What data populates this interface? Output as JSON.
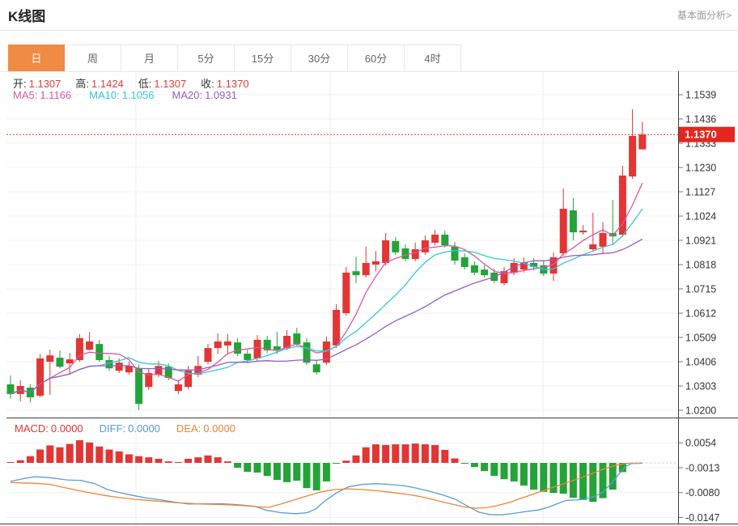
{
  "page": {
    "title": "K线图",
    "link_text": "基本面分析>"
  },
  "tabs": [
    {
      "label": "日",
      "active": true
    },
    {
      "label": "周",
      "active": false
    },
    {
      "label": "月",
      "active": false
    },
    {
      "label": "5分",
      "active": false
    },
    {
      "label": "15分",
      "active": false
    },
    {
      "label": "30分",
      "active": false
    },
    {
      "label": "60分",
      "active": false
    },
    {
      "label": "4时",
      "active": false
    }
  ],
  "ohlc_legend": [
    {
      "label": "开:",
      "value": "1.1307"
    },
    {
      "label": "高:",
      "value": "1.1424"
    },
    {
      "label": "低:",
      "value": "1.1307"
    },
    {
      "label": "收:",
      "value": "1.1370"
    }
  ],
  "ma_legend": [
    {
      "label": "MA5:",
      "value": "1.1166",
      "color": "#e0569e"
    },
    {
      "label": "MA10:",
      "value": "1.1056",
      "color": "#36c6d9"
    },
    {
      "label": "MA20:",
      "value": "1.0931",
      "color": "#9a5bc5"
    }
  ],
  "macd_legend": [
    {
      "label": "MACD:",
      "value": "0.0000",
      "color": "#e23534"
    },
    {
      "label": "DIFF:",
      "value": "0.0000",
      "color": "#5b9bd5"
    },
    {
      "label": "DEA:",
      "value": "0.0000",
      "color": "#ed8537"
    }
  ],
  "current_price": "1.1370",
  "colors": {
    "up": "#e23534",
    "down": "#23a338",
    "ma5": "#e0569e",
    "ma10": "#36c6d9",
    "ma20": "#9a5bc5",
    "diff": "#5b9bd5",
    "dea": "#ed8537",
    "tab_active": "#ef8b43",
    "price_badge": "#e5261f",
    "value_text": "#e23b3b",
    "axis_text": "#333333",
    "grid": "#f0f0f0",
    "border_dark": "#3c3c3c",
    "dotted_flat": "#b9cdd8"
  },
  "chart_data": {
    "type": "candlestick",
    "main": {
      "y_axis_labels": [
        "1.1539",
        "1.1436",
        "1.1333",
        "1.1230",
        "1.1127",
        "1.1024",
        "1.0921",
        "1.0818",
        "1.0715",
        "1.0612",
        "1.0509",
        "1.0406",
        "1.0303",
        "1.0200"
      ],
      "current_price_value": 1.137,
      "ma_periods": [
        5,
        10,
        20
      ],
      "candles": [
        [
          1.031,
          1.0269,
          1.0347,
          1.0248
        ],
        [
          1.0269,
          1.0303,
          1.0327,
          1.0238
        ],
        [
          1.0296,
          1.0255,
          1.031,
          1.0234
        ],
        [
          1.0262,
          1.042,
          1.044,
          1.0255
        ],
        [
          1.0406,
          1.0433,
          1.0457,
          1.0265
        ],
        [
          1.0423,
          1.0385,
          1.0454,
          1.0378
        ],
        [
          1.0399,
          1.0416,
          1.0443,
          1.0351
        ],
        [
          1.0413,
          1.0506,
          1.0523,
          1.0406
        ],
        [
          1.0457,
          1.0492,
          1.0533,
          1.0454
        ],
        [
          1.0481,
          1.0413,
          1.0499,
          1.0406
        ],
        [
          1.0413,
          1.0378,
          1.043,
          1.0368
        ],
        [
          1.0368,
          1.0402,
          1.042,
          1.0358
        ],
        [
          1.0361,
          1.0388,
          1.0406,
          1.0351
        ],
        [
          1.0378,
          1.0227,
          1.0395,
          1.02
        ],
        [
          1.0299,
          1.0358,
          1.0375,
          1.0286
        ],
        [
          1.0351,
          1.0388,
          1.0409,
          1.0341
        ],
        [
          1.0385,
          1.0337,
          1.0399,
          1.0327
        ],
        [
          1.0282,
          1.031,
          1.0327,
          1.0269
        ],
        [
          1.0299,
          1.0368,
          1.0388,
          1.0289
        ],
        [
          1.0351,
          1.0388,
          1.043,
          1.0341
        ],
        [
          1.0406,
          1.0464,
          1.0481,
          1.0395
        ],
        [
          1.0464,
          1.0492,
          1.0526,
          1.044
        ],
        [
          1.0475,
          1.0492,
          1.0523,
          1.0437
        ],
        [
          1.0488,
          1.044,
          1.0506,
          1.043
        ],
        [
          1.044,
          1.0413,
          1.0457,
          1.0402
        ],
        [
          1.042,
          1.0499,
          1.0519,
          1.0409
        ],
        [
          1.0499,
          1.0454,
          1.0516,
          1.0443
        ],
        [
          1.0471,
          1.0457,
          1.0533,
          1.044
        ],
        [
          1.0464,
          1.0516,
          1.054,
          1.0454
        ],
        [
          1.0526,
          1.0481,
          1.055,
          1.0471
        ],
        [
          1.0488,
          1.0402,
          1.0506,
          1.0392
        ],
        [
          1.0395,
          1.0361,
          1.0413,
          1.0351
        ],
        [
          1.0402,
          1.0492,
          1.0512,
          1.0392
        ],
        [
          1.0475,
          1.0626,
          1.065,
          1.0464
        ],
        [
          1.0612,
          1.0784,
          1.0808,
          1.0602
        ],
        [
          1.079,
          1.0773,
          1.0852,
          1.0739
        ],
        [
          1.0773,
          1.0825,
          1.0894,
          1.0763
        ],
        [
          1.0818,
          1.0832,
          1.0876,
          1.079
        ],
        [
          1.0825,
          1.0921,
          1.0952,
          1.0815
        ],
        [
          1.0918,
          1.087,
          1.0935,
          1.0859
        ],
        [
          1.0887,
          1.0842,
          1.0904,
          1.0832
        ],
        [
          1.0842,
          1.0883,
          1.0911,
          1.0832
        ],
        [
          1.087,
          1.0921,
          1.0942,
          1.0859
        ],
        [
          1.0911,
          1.0945,
          1.0966,
          1.09
        ],
        [
          1.0945,
          1.09,
          1.0962,
          1.089
        ],
        [
          1.0894,
          1.0835,
          1.0914,
          1.0818
        ],
        [
          1.0849,
          1.0808,
          1.0866,
          1.0797
        ],
        [
          1.0815,
          1.0784,
          1.0832,
          1.0773
        ],
        [
          1.0797,
          1.0773,
          1.0815,
          1.0763
        ],
        [
          1.0784,
          1.0749,
          1.0801,
          1.0739
        ],
        [
          1.0739,
          1.079,
          1.0808,
          1.0729
        ],
        [
          1.0784,
          1.0825,
          1.0846,
          1.0773
        ],
        [
          1.0797,
          1.0828,
          1.0849,
          1.0784
        ],
        [
          1.0825,
          1.0808,
          1.0846,
          1.0794
        ],
        [
          1.0815,
          1.078,
          1.0832,
          1.077
        ],
        [
          1.078,
          1.0849,
          1.087,
          1.0749
        ],
        [
          1.0866,
          1.1055,
          1.1141,
          1.0856
        ],
        [
          1.1048,
          1.0955,
          1.11,
          1.0921
        ],
        [
          1.0955,
          1.0962,
          1.0986,
          1.0945
        ],
        [
          1.0883,
          1.0904,
          1.1038,
          1.0873
        ],
        [
          1.0894,
          1.0952,
          1.0997,
          1.0866
        ],
        [
          1.0952,
          1.0938,
          1.1093,
          1.0904
        ],
        [
          1.0945,
          1.1196,
          1.1237,
          1.0935
        ],
        [
          1.1192,
          1.1364,
          1.1477,
          1.1182
        ],
        [
          1.1307,
          1.137,
          1.1424,
          1.1307
        ]
      ]
    },
    "macd": {
      "y_axis_labels": [
        "0.0054",
        "-0.0013",
        "-0.0080",
        "-0.0147"
      ],
      "histogram": [
        0.0001,
        0.0007,
        0.0018,
        0.0036,
        0.0047,
        0.0042,
        0.0051,
        0.0061,
        0.0055,
        0.0044,
        0.0036,
        0.0031,
        0.0023,
        0.0018,
        0.0015,
        0.0011,
        0.0004,
        0.0001,
        0.0011,
        0.0015,
        0.002,
        0.0015,
        0.0004,
        -0.0013,
        -0.0024,
        -0.0026,
        -0.0035,
        -0.0046,
        -0.0052,
        -0.0048,
        -0.0068,
        -0.0074,
        -0.005,
        -0.0002,
        0.0006,
        0.002,
        0.0042,
        0.005,
        0.0048,
        0.005,
        0.005,
        0.0052,
        0.005,
        0.0048,
        0.0035,
        0.0012,
        -0.0002,
        -0.0011,
        -0.0022,
        -0.0035,
        -0.0044,
        -0.005,
        -0.0061,
        -0.0072,
        -0.0078,
        -0.0081,
        -0.0083,
        -0.0094,
        -0.01,
        -0.0105,
        -0.0095,
        -0.0072,
        -0.0025,
        0,
        0
      ],
      "diff_line": [
        [
          13,
          -0.005
        ],
        [
          30,
          -0.0042
        ],
        [
          43,
          -0.0037
        ],
        [
          62,
          -0.004
        ],
        [
          83,
          -0.0046
        ],
        [
          100,
          -0.0047
        ],
        [
          117,
          -0.0056
        ],
        [
          133,
          -0.0072
        ],
        [
          150,
          -0.0081
        ],
        [
          167,
          -0.0089
        ],
        [
          183,
          -0.0095
        ],
        [
          200,
          -0.01
        ],
        [
          217,
          -0.0106
        ],
        [
          233,
          -0.0111
        ],
        [
          255,
          -0.011
        ],
        [
          275,
          -0.011
        ],
        [
          295,
          -0.0113
        ],
        [
          315,
          -0.0117
        ],
        [
          330,
          -0.0128
        ],
        [
          347,
          -0.0134
        ],
        [
          365,
          -0.0137
        ],
        [
          380,
          -0.0134
        ],
        [
          390,
          -0.0124
        ],
        [
          400,
          -0.0105
        ],
        [
          415,
          -0.0082
        ],
        [
          430,
          -0.0065
        ],
        [
          447,
          -0.0058
        ],
        [
          465,
          -0.0056
        ],
        [
          482,
          -0.0058
        ],
        [
          500,
          -0.0062
        ],
        [
          515,
          -0.0068
        ],
        [
          530,
          -0.0076
        ],
        [
          548,
          -0.0087
        ],
        [
          563,
          -0.0098
        ],
        [
          578,
          -0.0117
        ],
        [
          592,
          -0.0133
        ],
        [
          605,
          -0.0139
        ],
        [
          620,
          -0.014
        ],
        [
          635,
          -0.0136
        ],
        [
          650,
          -0.0131
        ],
        [
          665,
          -0.0127
        ],
        [
          678,
          -0.0119
        ],
        [
          690,
          -0.0109
        ],
        [
          700,
          -0.0101
        ],
        [
          712,
          -0.01
        ],
        [
          722,
          -0.0098
        ],
        [
          735,
          -0.009
        ],
        [
          745,
          -0.0079
        ],
        [
          755,
          -0.0056
        ],
        [
          765,
          -0.003
        ],
        [
          773,
          -0.001
        ],
        [
          780,
          -0.0002
        ],
        [
          794,
          -0.0001
        ]
      ],
      "dea_line": [
        [
          13,
          -0.0053
        ],
        [
          43,
          -0.0055
        ],
        [
          62,
          -0.0058
        ],
        [
          83,
          -0.0068
        ],
        [
          100,
          -0.0076
        ],
        [
          117,
          -0.0083
        ],
        [
          133,
          -0.0089
        ],
        [
          150,
          -0.0094
        ],
        [
          167,
          -0.0098
        ],
        [
          183,
          -0.0101
        ],
        [
          200,
          -0.0104
        ],
        [
          217,
          -0.0107
        ],
        [
          233,
          -0.0109
        ],
        [
          250,
          -0.0111
        ],
        [
          267,
          -0.0112
        ],
        [
          283,
          -0.0113
        ],
        [
          300,
          -0.0115
        ],
        [
          317,
          -0.0118
        ],
        [
          332,
          -0.012
        ],
        [
          347,
          -0.0111
        ],
        [
          363,
          -0.01
        ],
        [
          380,
          -0.0089
        ],
        [
          397,
          -0.0078
        ],
        [
          413,
          -0.0072
        ],
        [
          430,
          -0.007
        ],
        [
          447,
          -0.0072
        ],
        [
          465,
          -0.0075
        ],
        [
          482,
          -0.0079
        ],
        [
          500,
          -0.0084
        ],
        [
          515,
          -0.0089
        ],
        [
          530,
          -0.0096
        ],
        [
          545,
          -0.0104
        ],
        [
          560,
          -0.0112
        ],
        [
          575,
          -0.0119
        ],
        [
          588,
          -0.0122
        ],
        [
          600,
          -0.0121
        ],
        [
          615,
          -0.0115
        ],
        [
          630,
          -0.0106
        ],
        [
          647,
          -0.0093
        ],
        [
          663,
          -0.0081
        ],
        [
          680,
          -0.0068
        ],
        [
          697,
          -0.0056
        ],
        [
          713,
          -0.0044
        ],
        [
          730,
          -0.003
        ],
        [
          747,
          -0.0016
        ],
        [
          762,
          -0.0006
        ],
        [
          775,
          -0.0001
        ],
        [
          794,
          0
        ]
      ]
    },
    "x_gridlines": [
      168,
      408,
      671
    ]
  }
}
